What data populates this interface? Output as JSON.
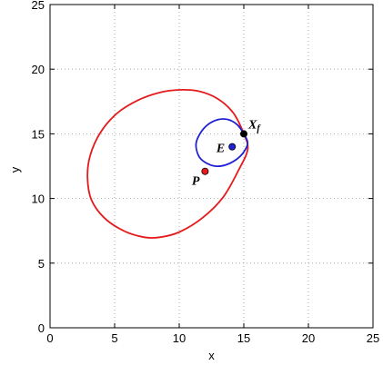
{
  "chart_data": {
    "type": "scatter",
    "title": "",
    "xlabel": "x",
    "ylabel": "y",
    "xlim": [
      0,
      25
    ],
    "ylim": [
      0,
      25
    ],
    "xticks": [
      0,
      5,
      10,
      15,
      20,
      25
    ],
    "yticks": [
      0,
      5,
      10,
      15,
      20,
      25
    ],
    "grid": true,
    "curves": [
      {
        "color": "#e41a1c",
        "closed": true,
        "points": [
          [
            15.0,
            15.0
          ],
          [
            14.2,
            16.6
          ],
          [
            13.0,
            17.7
          ],
          [
            11.5,
            18.3
          ],
          [
            10.0,
            18.4
          ],
          [
            8.5,
            18.2
          ],
          [
            6.8,
            17.6
          ],
          [
            5.2,
            16.6
          ],
          [
            3.9,
            15.1
          ],
          [
            3.1,
            13.3
          ],
          [
            2.9,
            11.6
          ],
          [
            3.2,
            9.9
          ],
          [
            4.2,
            8.5
          ],
          [
            5.7,
            7.5
          ],
          [
            7.3,
            7.0
          ],
          [
            8.5,
            7.0
          ],
          [
            10.0,
            7.4
          ],
          [
            11.8,
            8.5
          ],
          [
            13.4,
            10.1
          ],
          [
            14.6,
            12.2
          ],
          [
            15.3,
            13.8
          ]
        ]
      },
      {
        "color": "#1f1fd6",
        "closed": true,
        "points": [
          [
            15.0,
            15.0
          ],
          [
            14.5,
            15.7
          ],
          [
            13.8,
            16.1
          ],
          [
            13.0,
            16.1
          ],
          [
            12.2,
            15.7
          ],
          [
            11.6,
            15.0
          ],
          [
            11.3,
            14.2
          ],
          [
            11.5,
            13.3
          ],
          [
            12.0,
            12.8
          ],
          [
            12.8,
            12.5
          ],
          [
            13.6,
            12.6
          ],
          [
            14.4,
            13.0
          ],
          [
            15.0,
            13.6
          ],
          [
            15.3,
            14.3
          ]
        ]
      }
    ],
    "points": [
      {
        "label": "E",
        "x": 14.1,
        "y": 14.0,
        "color": "#1f1fd6"
      },
      {
        "label": "P",
        "x": 12.0,
        "y": 12.1,
        "color": "#e41a1c"
      },
      {
        "label": "Xf",
        "x": 15.0,
        "y": 15.0,
        "color": "#000000"
      }
    ]
  }
}
